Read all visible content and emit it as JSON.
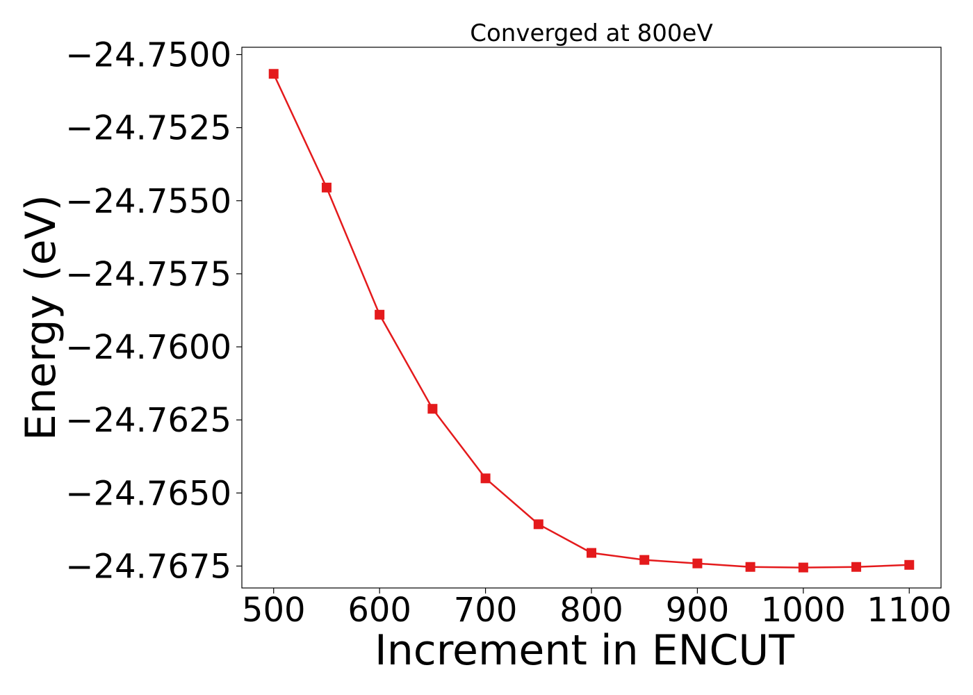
{
  "chart_data": {
    "type": "line",
    "title": "Converged at 800eV",
    "xlabel": "Increment in ENCUT",
    "ylabel": "Energy (eV)",
    "xlim": [
      470,
      1130
    ],
    "ylim": [
      -24.76825,
      -24.74975
    ],
    "xticks": [
      500,
      600,
      700,
      800,
      900,
      1000,
      1100
    ],
    "yticks": [
      -24.75,
      -24.7525,
      -24.755,
      -24.7575,
      -24.76,
      -24.7625,
      -24.765,
      -24.7675
    ],
    "ytick_labels": [
      "−24.7500",
      "−24.7525",
      "−24.7550",
      "−24.7575",
      "−24.7600",
      "−24.7625",
      "−24.7650",
      "−24.7675"
    ],
    "grid": false,
    "series": [
      {
        "color": "#e41a1c",
        "marker": "square",
        "x": [
          500,
          550,
          600,
          650,
          700,
          750,
          800,
          850,
          900,
          950,
          1000,
          1050,
          1100
        ],
        "y": [
          -24.75066,
          -24.75455,
          -24.7589,
          -24.76212,
          -24.7645,
          -24.76607,
          -24.76705,
          -24.76729,
          -24.76741,
          -24.76753,
          -24.76755,
          -24.76753,
          -24.76746
        ]
      }
    ]
  }
}
